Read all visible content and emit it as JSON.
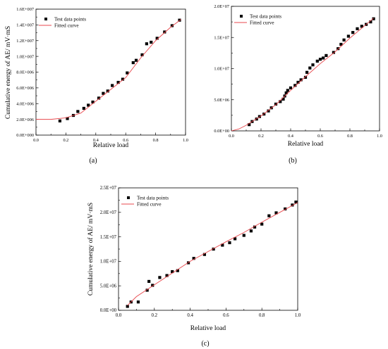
{
  "chart_data": [
    {
      "type": "scatter",
      "panel_label": "(a)",
      "xlabel": "Relative load",
      "ylabel": "Cumulative energy of AE/ mV·mS",
      "xlim": [
        0.0,
        1.0
      ],
      "ylim": [
        0,
        16000000
      ],
      "xticks": [
        0.0,
        0.2,
        0.4,
        0.6,
        0.8,
        1.0
      ],
      "xtick_labels": [
        "0.0",
        "0.2",
        "0.4",
        "0.6",
        "0.8",
        "1.0"
      ],
      "yticks": [
        0,
        2000000,
        4000000,
        6000000,
        8000000,
        10000000,
        12000000,
        14000000,
        16000000
      ],
      "ytick_labels": [
        "0.0E+000",
        "2.0E+006",
        "4.0E+006",
        "6.0E+006",
        "8.0E+006",
        "1.0E+007",
        "1.2E+007",
        "1.4E+007",
        "1.6E+007"
      ],
      "legend_position": "top-left",
      "series": [
        {
          "name": "Test data points",
          "kind": "points",
          "color": "#000000",
          "x": [
            0.16,
            0.21,
            0.25,
            0.28,
            0.32,
            0.35,
            0.38,
            0.42,
            0.45,
            0.48,
            0.51,
            0.55,
            0.58,
            0.61,
            0.65,
            0.67,
            0.71,
            0.74,
            0.77,
            0.81,
            0.86,
            0.91,
            0.96
          ],
          "y": [
            1800000,
            2100000,
            2500000,
            3000000,
            3400000,
            3800000,
            4200000,
            4700000,
            5300000,
            5600000,
            6300000,
            6700000,
            7100000,
            7900000,
            9200000,
            9500000,
            10200000,
            11600000,
            11800000,
            12300000,
            13100000,
            13900000,
            14600000
          ]
        },
        {
          "name": "Fitted curve",
          "kind": "line",
          "color": "#e8474c",
          "x": [
            0.0,
            0.1,
            0.2,
            0.3,
            0.4,
            0.5,
            0.6,
            0.7,
            0.8,
            0.9,
            0.97
          ],
          "y": [
            2000000,
            2000000,
            2200000,
            2800000,
            4300000,
            5800000,
            7300000,
            9800000,
            12000000,
            13700000,
            14700000
          ]
        }
      ]
    },
    {
      "type": "scatter",
      "panel_label": "(b)",
      "xlabel": "Relative load",
      "ylabel": "",
      "xlim": [
        0.0,
        1.0
      ],
      "ylim": [
        0,
        20000000
      ],
      "xticks": [
        0.0,
        0.2,
        0.4,
        0.6,
        0.8,
        1.0
      ],
      "xtick_labels": [
        "0.0",
        "0.2",
        "0.4",
        "0.6",
        "0.8",
        "1.0"
      ],
      "yticks": [
        0,
        5000000,
        10000000,
        15000000,
        20000000
      ],
      "ytick_labels": [
        "0.0E+00",
        "5.0E+06",
        "1.0E+07",
        "1.5E+07",
        "2.0E+07"
      ],
      "legend_position": "top-left",
      "series": [
        {
          "name": "Test data points",
          "kind": "points",
          "color": "#000000",
          "x": [
            0.12,
            0.14,
            0.17,
            0.19,
            0.22,
            0.25,
            0.27,
            0.3,
            0.33,
            0.35,
            0.36,
            0.37,
            0.38,
            0.4,
            0.43,
            0.45,
            0.47,
            0.5,
            0.51,
            0.53,
            0.55,
            0.58,
            0.6,
            0.62,
            0.64,
            0.69,
            0.72,
            0.74,
            0.76,
            0.79,
            0.82,
            0.85,
            0.88,
            0.91,
            0.94,
            0.96
          ],
          "y": [
            1000000,
            1500000,
            1900000,
            2300000,
            2700000,
            3200000,
            3700000,
            4300000,
            4700000,
            5100000,
            5600000,
            6100000,
            6500000,
            6900000,
            7300000,
            7800000,
            8200000,
            8600000,
            9400000,
            10100000,
            10600000,
            11200000,
            11500000,
            11700000,
            12100000,
            12600000,
            13200000,
            13900000,
            14600000,
            15200000,
            15800000,
            16400000,
            16800000,
            17100000,
            17500000,
            18000000
          ]
        },
        {
          "name": "Fitted curve",
          "kind": "line",
          "color": "#e8474c",
          "x": [
            0.0,
            0.05,
            0.1,
            0.2,
            0.3,
            0.4,
            0.5,
            0.6,
            0.7,
            0.8,
            0.9,
            0.96
          ],
          "y": [
            0,
            300000,
            900000,
            2400000,
            4200000,
            6500000,
            8700000,
            10800000,
            12700000,
            14900000,
            16900000,
            18100000
          ]
        }
      ]
    },
    {
      "type": "scatter",
      "panel_label": "(c)",
      "xlabel": "Relative load",
      "ylabel": "Cumulative energy of AE/ mV·mS",
      "xlim": [
        0.0,
        1.0
      ],
      "ylim": [
        0,
        25000000
      ],
      "xticks": [
        0.0,
        0.2,
        0.4,
        0.6,
        0.8,
        1.0
      ],
      "xtick_labels": [
        "0.0",
        "0.2",
        "0.4",
        "0.6",
        "0.8",
        "1.0"
      ],
      "yticks": [
        0,
        5000000,
        10000000,
        15000000,
        20000000,
        25000000
      ],
      "ytick_labels": [
        "0.0E+00",
        "5.0E+06",
        "1.0E+07",
        "1.5E+07",
        "2.0E+07",
        "2.5E+07"
      ],
      "legend_position": "top-left",
      "series": [
        {
          "name": "Test data points",
          "kind": "points",
          "color": "#000000",
          "x": [
            0.05,
            0.07,
            0.11,
            0.16,
            0.17,
            0.19,
            0.23,
            0.27,
            0.3,
            0.33,
            0.39,
            0.42,
            0.48,
            0.53,
            0.58,
            0.62,
            0.65,
            0.7,
            0.74,
            0.76,
            0.8,
            0.84,
            0.88,
            0.93,
            0.97,
            0.99
          ],
          "y": [
            800000,
            1700000,
            1700000,
            4100000,
            5900000,
            5100000,
            6700000,
            7100000,
            7900000,
            8100000,
            9700000,
            10600000,
            11400000,
            12500000,
            13300000,
            13800000,
            14600000,
            15300000,
            16200000,
            17000000,
            17600000,
            19300000,
            19900000,
            20700000,
            21500000,
            22100000
          ]
        },
        {
          "name": "Fitted curve",
          "kind": "line",
          "color": "#e8474c",
          "x": [
            0.05,
            0.1,
            0.2,
            0.3,
            0.4,
            0.5,
            0.6,
            0.7,
            0.8,
            0.9,
            1.0
          ],
          "y": [
            1000000,
            2800000,
            5200000,
            7600000,
            10000000,
            12000000,
            14000000,
            15900000,
            18000000,
            20000000,
            22000000
          ]
        }
      ]
    }
  ]
}
